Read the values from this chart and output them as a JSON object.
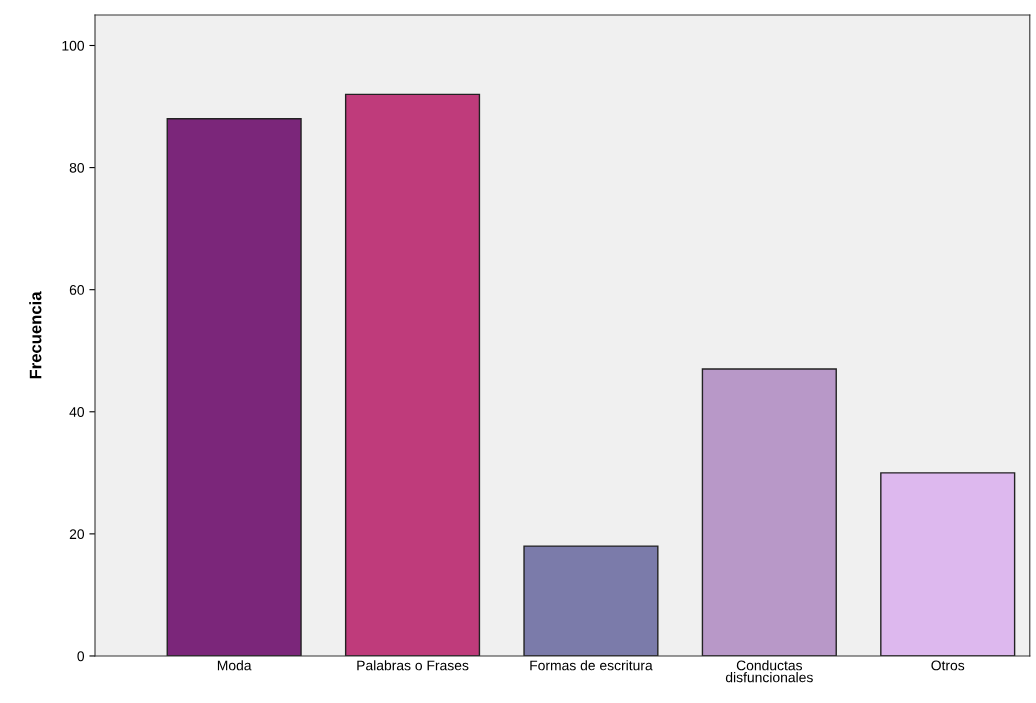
{
  "chart_data": {
    "type": "bar",
    "ylabel": "Frecuencia",
    "categories": [
      "Moda",
      "Palabras o Frases",
      "Formas de escritura",
      "Conductas\ndisfuncionales",
      "Otros"
    ],
    "values": [
      88,
      92,
      18,
      47,
      30
    ],
    "colors": [
      "#7b267a",
      "#bf3b7b",
      "#7b7baa",
      "#b898c8",
      "#ddb8ee"
    ],
    "ylim": [
      0,
      105
    ],
    "yticks": [
      0,
      20,
      40,
      60,
      80,
      100
    ],
    "grid": false,
    "legend": false
  }
}
